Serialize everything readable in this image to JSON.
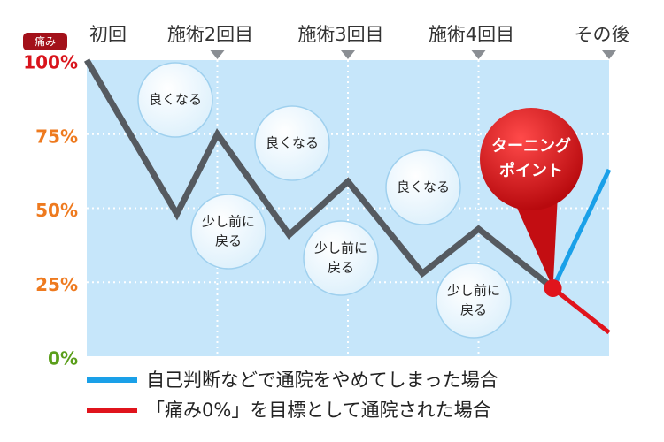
{
  "chart_data": {
    "type": "line",
    "y_axis_label": "痛み",
    "xlim": [
      1,
      5
    ],
    "xticks": [
      {
        "value": 1,
        "label": "初回"
      },
      {
        "value": 2,
        "label": "施術2回目"
      },
      {
        "value": 3,
        "label": "施術3回目"
      },
      {
        "value": 4,
        "label": "施術4回目"
      },
      {
        "value": 5,
        "label": "その後"
      }
    ],
    "ylim": [
      0,
      100
    ],
    "yticks": [
      {
        "value": 0,
        "label": "0%"
      },
      {
        "value": 25,
        "label": "25%"
      },
      {
        "value": 50,
        "label": "50%"
      },
      {
        "value": 75,
        "label": "75%"
      },
      {
        "value": 100,
        "label": "100%"
      }
    ],
    "ytick_colors": [
      "#5a9e1a",
      "#ee7a1f",
      "#ee7a1f",
      "#ee7a1f",
      "#d9141c"
    ],
    "grid": true,
    "series": [
      {
        "color": "#555a60",
        "x": [
          1,
          1.69,
          2,
          2.55,
          3,
          3.57,
          4,
          4.57
        ],
        "values": [
          100,
          48,
          75,
          41,
          59,
          28,
          43,
          23
        ]
      },
      {
        "name": "自己判断などで通院をやめてしまった場合",
        "color": "#1aa0e8",
        "x": [
          4.57,
          5
        ],
        "values": [
          23,
          63
        ]
      },
      {
        "name": "「痛み0%」を目標として通院された場合",
        "color": "#e0141c",
        "x": [
          4.57,
          5
        ],
        "values": [
          23,
          8
        ]
      }
    ],
    "annotations": [
      {
        "lines": [
          "良くなる"
        ]
      },
      {
        "lines": [
          "少し前に",
          "戻る"
        ]
      },
      {
        "lines": [
          "良くなる"
        ]
      },
      {
        "lines": [
          "少し前に",
          "戻る"
        ]
      },
      {
        "lines": [
          "良くなる"
        ]
      },
      {
        "lines": [
          "少し前に",
          "戻る"
        ]
      }
    ],
    "turning_point": [
      "ターニング",
      "ポイント"
    ]
  }
}
